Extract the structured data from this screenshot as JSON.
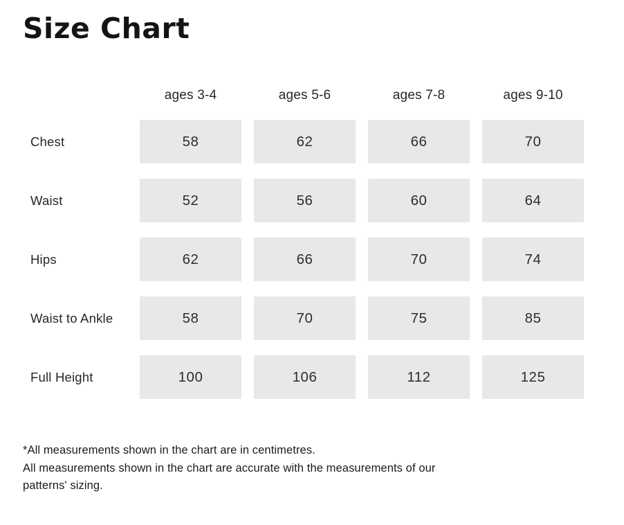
{
  "page": {
    "background": "#ffffff",
    "cell_background": "#e8e8e8",
    "title_color": "#141414",
    "text_color": "#272727"
  },
  "chart_data": {
    "type": "table",
    "title": "Size Chart",
    "unit": "centimetres",
    "columns": [
      "ages 3-4",
      "ages 5-6",
      "ages 7-8",
      "ages 9-10"
    ],
    "rows": [
      {
        "label": "Chest",
        "values": [
          58,
          62,
          66,
          70
        ]
      },
      {
        "label": "Waist",
        "values": [
          52,
          56,
          60,
          64
        ]
      },
      {
        "label": "Hips",
        "values": [
          62,
          66,
          70,
          74
        ]
      },
      {
        "label": "Waist to Ankle",
        "values": [
          58,
          70,
          75,
          85
        ]
      },
      {
        "label": "Full Height",
        "values": [
          100,
          106,
          112,
          125
        ]
      }
    ]
  },
  "footnotes": {
    "line1": "*All measurements shown in the chart are in centimetres.",
    "line2": "All measurements shown in the chart are accurate with the measurements of our patterns' sizing."
  }
}
